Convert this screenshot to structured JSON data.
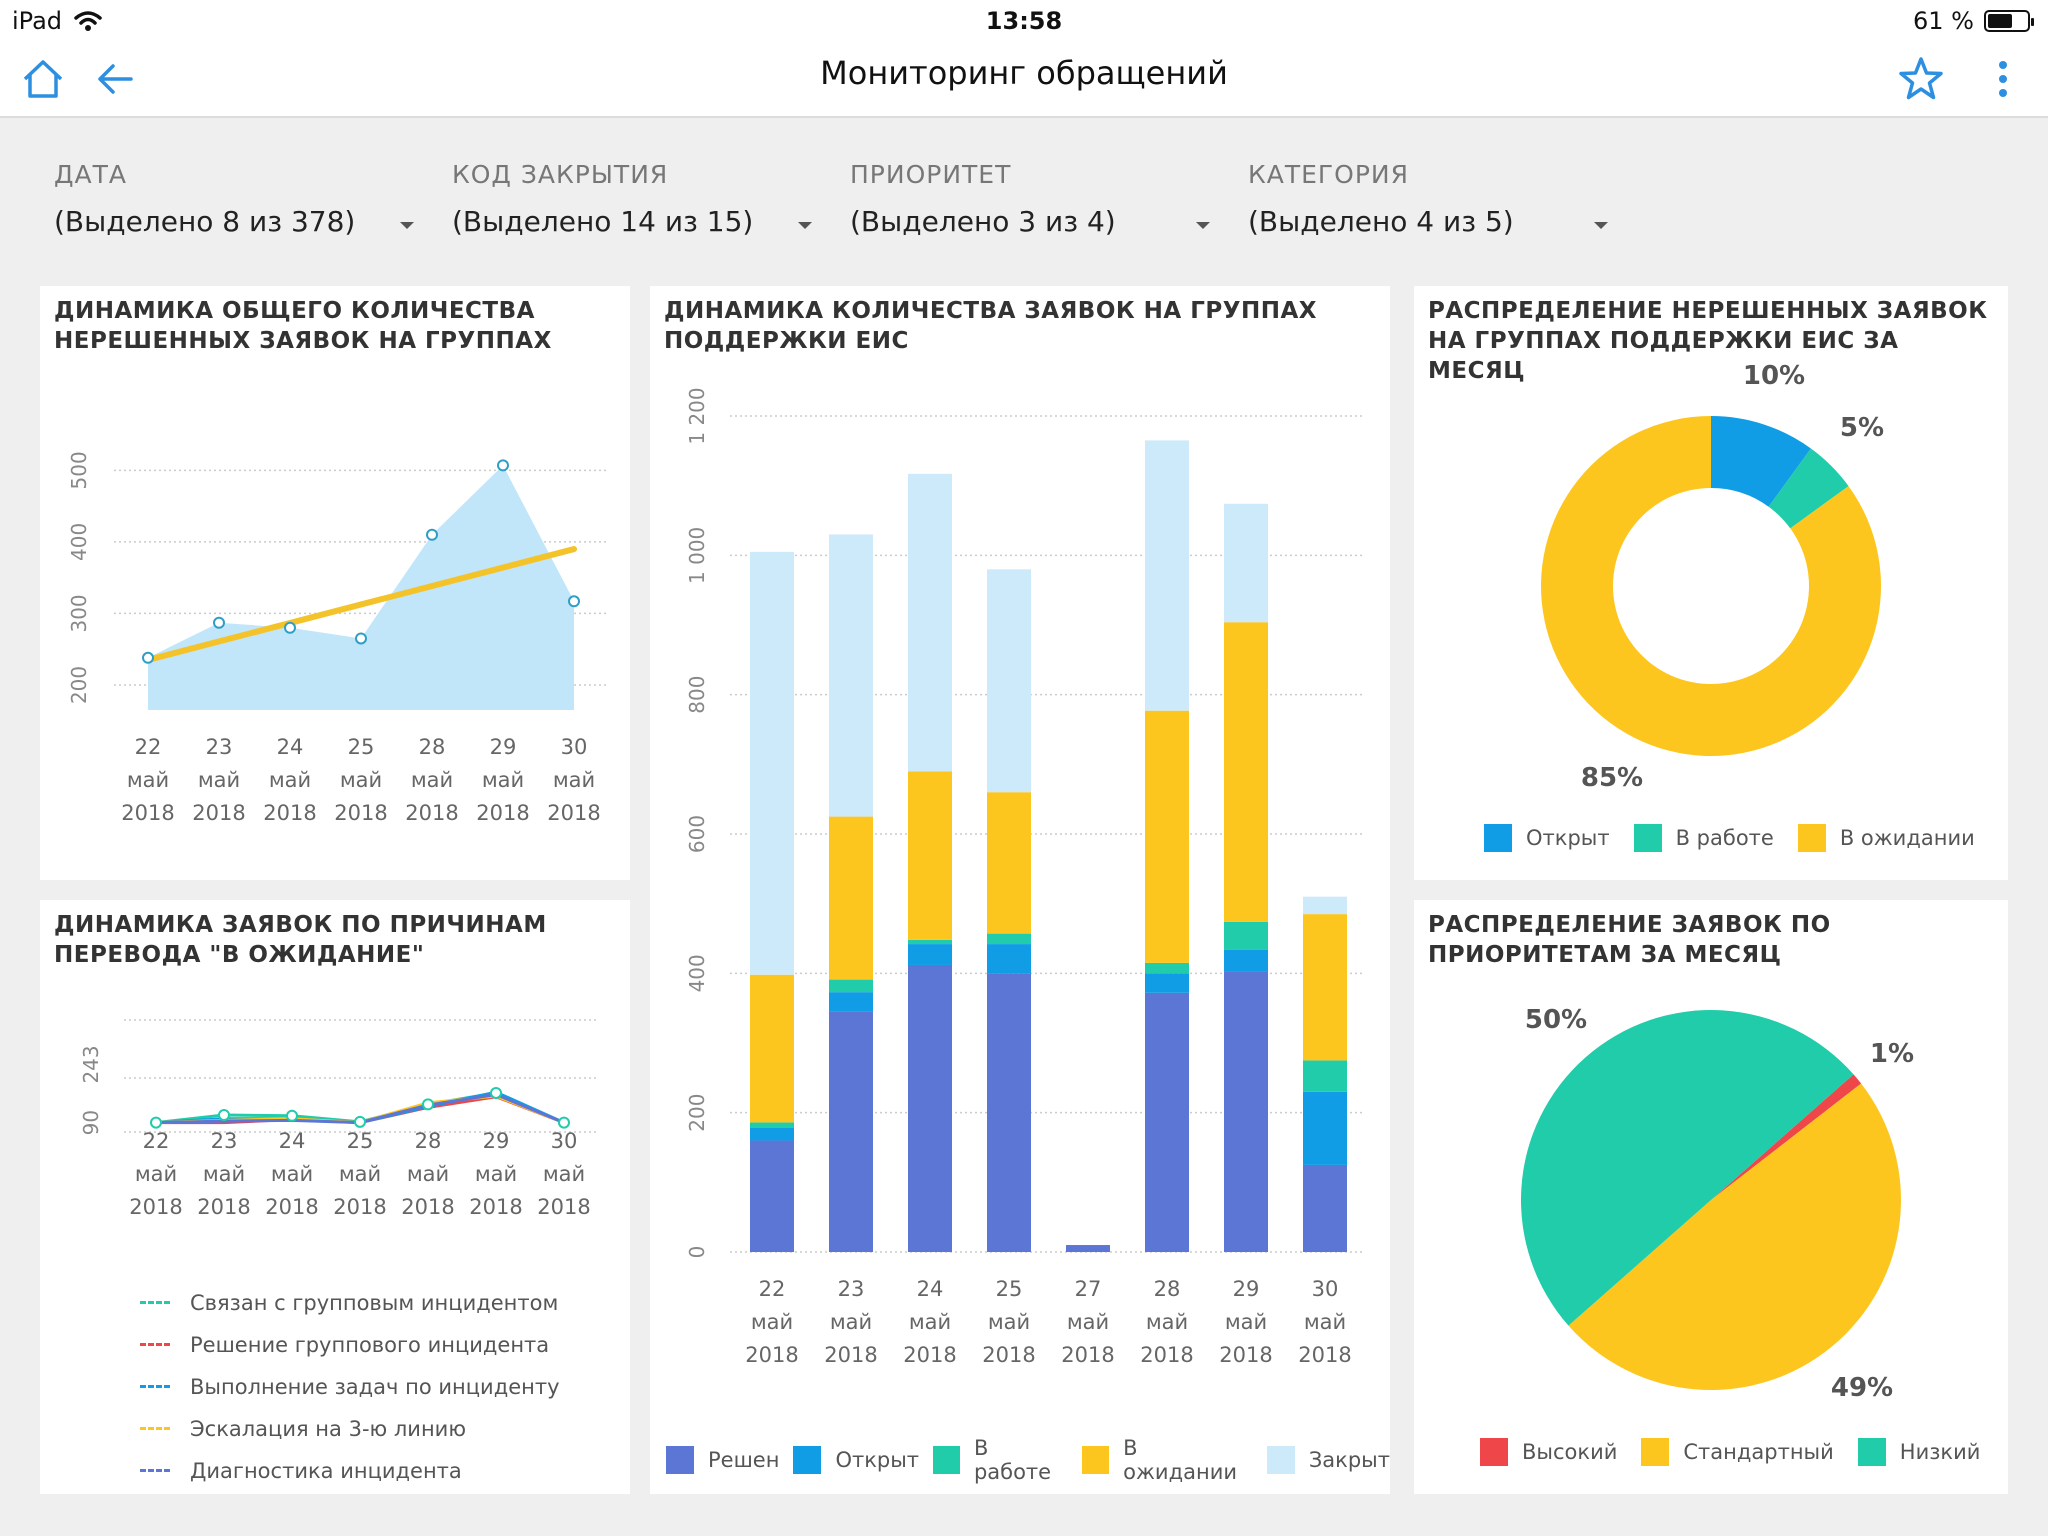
{
  "statusbar": {
    "device": "iPad",
    "time": "13:58",
    "battery": "61 %",
    "battery_level": 0.61
  },
  "navbar": {
    "title": "Мониторинг обращений",
    "icons": [
      "home-icon",
      "back-arrow-icon",
      "star-icon",
      "more-vertical-icon"
    ]
  },
  "filters": [
    {
      "label": "ДАТА",
      "value": "(Выделено 8 из 378)"
    },
    {
      "label": "КОД ЗАКРЫТИЯ",
      "value": "(Выделено 14 из 15)"
    },
    {
      "label": "ПРИОРИТЕТ",
      "value": "(Выделено 3 из 4)"
    },
    {
      "label": "КАТЕГОРИЯ",
      "value": "(Выделено 4 из 5)"
    }
  ],
  "colors": {
    "blue_dark": "#5b76d4",
    "blue": "#119de6",
    "teal": "#20ccaa",
    "yellow": "#fdc61f",
    "light_blue": "#cdeafa",
    "red": "#ef4649",
    "area": "#c1e6f9",
    "trend": "#f4c329",
    "grid": "#cccccc"
  },
  "charts": {
    "trend": {
      "title": "ДИНАМИКА ОБЩЕГО КОЛИЧЕСТВА НЕРЕШЕННЫХ ЗАЯВОК НА ГРУППАХ"
    },
    "reasons": {
      "title": "ДИНАМИКА ЗАЯВОК ПО ПРИЧИНАМ ПЕРЕВОДА \"В ОЖИДАНИЕ\""
    },
    "stacked": {
      "title": "ДИНАМИКА КОЛИЧЕСТВА ЗАЯВОК НА ГРУППАХ ПОДДЕРЖКИ ЕИС"
    },
    "donut": {
      "title": "РАСПРЕДЕЛЕНИЕ НЕРЕШЕННЫХ ЗАЯВОК НА ГРУППАХ ПОДДЕРЖКИ ЕИС ЗА МЕСЯЦ"
    },
    "pie": {
      "title": "РАСПРЕДЕЛЕНИЕ ЗАЯВОК ПО ПРИОРИТЕТАМ ЗА МЕСЯЦ"
    }
  },
  "chart_data": [
    {
      "id": "trend",
      "type": "area",
      "categories": [
        "22 май 2018",
        "23 май 2018",
        "24 май 2018",
        "25 май 2018",
        "28 май 2018",
        "29 май 2018",
        "30 май 2018"
      ],
      "values": [
        238,
        287,
        280,
        265,
        410,
        507,
        317
      ],
      "trend_line": [
        235,
        390
      ],
      "y_ticks": [
        "200",
        "300",
        "400",
        "500"
      ],
      "ylim": [
        165,
        590
      ],
      "grid": true
    },
    {
      "id": "reasons",
      "type": "line",
      "categories": [
        "22 май 2018",
        "23 май 2018",
        "24 май 2018",
        "25 май 2018",
        "28 май 2018",
        "29 май 2018",
        "30 май 2018"
      ],
      "y_ticks": [
        "90",
        "243"
      ],
      "ylim": [
        -40,
        360
      ],
      "series": [
        {
          "name": "Связан с групповым инцидентом",
          "color": "#20ccaa",
          "values": [
            90,
            110,
            108,
            92,
            138,
            168,
            90
          ]
        },
        {
          "name": "Решение группового инцидента",
          "color": "#ef4649",
          "values": [
            90,
            90,
            98,
            90,
            130,
            158,
            90
          ]
        },
        {
          "name": "Выполнение задач по инциденту",
          "color": "#119de6",
          "values": [
            90,
            100,
            100,
            90,
            132,
            170,
            90
          ]
        },
        {
          "name": "Эскалация на 3-ю линию",
          "color": "#fdc61f",
          "values": [
            90,
            96,
            100,
            90,
            142,
            160,
            90
          ]
        },
        {
          "name": "Диагностика инцидента",
          "color": "#5b76d4",
          "values": [
            90,
            94,
            96,
            90,
            136,
            164,
            90
          ]
        }
      ],
      "grid": true
    },
    {
      "id": "stacked",
      "type": "bar",
      "stacked": true,
      "categories": [
        "22 май 2018",
        "23 май 2018",
        "24 май 2018",
        "25 май 2018",
        "27 май 2018",
        "28 май 2018",
        "29 май 2018",
        "30 май 2018"
      ],
      "y_ticks": [
        "0",
        "200",
        "400",
        "600",
        "800",
        "1 000",
        "1 200"
      ],
      "ylim": [
        0,
        1200
      ],
      "series": [
        {
          "name": "Решен",
          "color": "#5b76d4",
          "values": [
            160,
            345,
            412,
            400,
            10,
            372,
            402,
            125
          ]
        },
        {
          "name": "Открыт",
          "color": "#119de6",
          "values": [
            18,
            28,
            30,
            42,
            0,
            28,
            32,
            105
          ]
        },
        {
          "name": "В работе",
          "color": "#20ccaa",
          "values": [
            8,
            18,
            6,
            15,
            0,
            15,
            40,
            45
          ]
        },
        {
          "name": "В ожидании",
          "color": "#fdc61f",
          "values": [
            212,
            234,
            242,
            203,
            0,
            362,
            430,
            210
          ]
        },
        {
          "name": "Закрыт",
          "color": "#cdeafa",
          "values": [
            607,
            405,
            427,
            320,
            0,
            388,
            170,
            25
          ]
        }
      ],
      "grid": true,
      "legend": "bottom"
    },
    {
      "id": "donut",
      "type": "pie",
      "donut": true,
      "labels": [
        "Открыт",
        "В работе",
        "В ожидании"
      ],
      "values": [
        10,
        5,
        85
      ],
      "value_labels": [
        "10%",
        "5%",
        "85%"
      ],
      "colors": [
        "#119de6",
        "#20ccaa",
        "#fdc61f"
      ],
      "legend": "bottom"
    },
    {
      "id": "pie",
      "type": "pie",
      "labels": [
        "Высокий",
        "Стандартный",
        "Низкий"
      ],
      "values": [
        1,
        49,
        50
      ],
      "value_labels": [
        "1%",
        "49%",
        "50%"
      ],
      "colors": [
        "#ef4649",
        "#fdc61f",
        "#20ccaa"
      ],
      "legend": "bottom"
    }
  ]
}
